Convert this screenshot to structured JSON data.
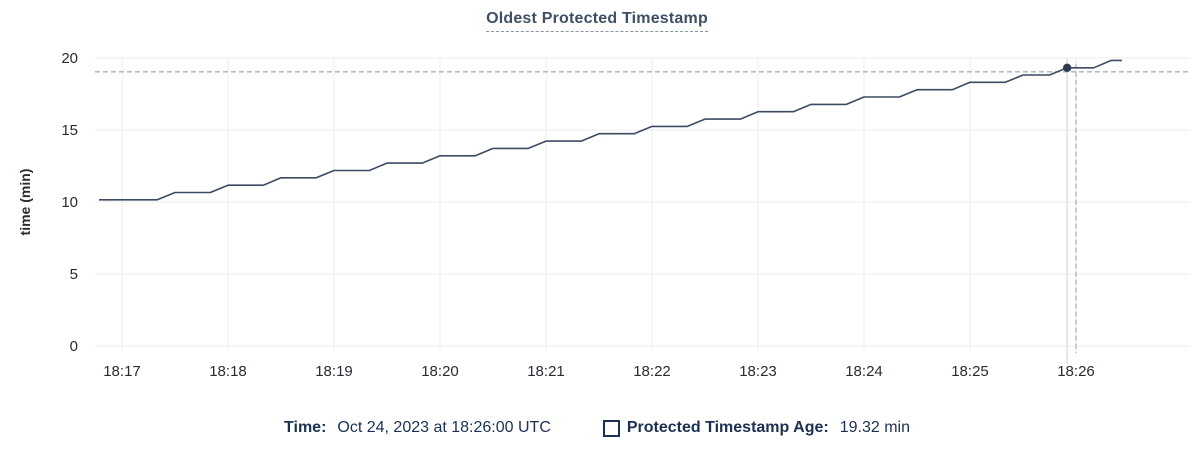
{
  "chart": {
    "title": "Oldest Protected Timestamp"
  },
  "chart_data": {
    "type": "line",
    "title": "Oldest Protected Timestamp",
    "xlabel": "",
    "ylabel": "time (min)",
    "ylim": [
      0,
      20
    ],
    "y_ticks": [
      0,
      5,
      10,
      15,
      20
    ],
    "x_ticks": [
      "18:17",
      "18:18",
      "18:19",
      "18:20",
      "18:21",
      "18:22",
      "18:23",
      "18:24",
      "18:25",
      "18:26"
    ],
    "grid": "on",
    "legend_position": "bottom-center",
    "series": [
      {
        "name": "Protected Timestamp Age",
        "unit": "min",
        "shape": "staircase rising ~1 min per min, steps of ~0.5 every 30s",
        "points_t_v": [
          [
            -13,
            10.15
          ],
          [
            20,
            10.15
          ],
          [
            30,
            10.66
          ],
          [
            50,
            10.66
          ],
          [
            60,
            11.17
          ],
          [
            80,
            11.17
          ],
          [
            90,
            11.68
          ],
          [
            110,
            11.68
          ],
          [
            120,
            12.19
          ],
          [
            140,
            12.19
          ],
          [
            150,
            12.7
          ],
          [
            170,
            12.7
          ],
          [
            180,
            13.21
          ],
          [
            200,
            13.21
          ],
          [
            210,
            13.72
          ],
          [
            230,
            13.72
          ],
          [
            240,
            14.23
          ],
          [
            260,
            14.23
          ],
          [
            270,
            14.74
          ],
          [
            290,
            14.74
          ],
          [
            300,
            15.25
          ],
          [
            320,
            15.25
          ],
          [
            330,
            15.76
          ],
          [
            350,
            15.76
          ],
          [
            360,
            16.27
          ],
          [
            380,
            16.27
          ],
          [
            390,
            16.78
          ],
          [
            410,
            16.78
          ],
          [
            420,
            17.29
          ],
          [
            440,
            17.29
          ],
          [
            450,
            17.8
          ],
          [
            470,
            17.8
          ],
          [
            480,
            18.31
          ],
          [
            500,
            18.31
          ],
          [
            510,
            18.82
          ],
          [
            525,
            18.82
          ],
          [
            535,
            19.32
          ],
          [
            550,
            19.32
          ],
          [
            560,
            19.83
          ],
          [
            566,
            19.83
          ]
        ],
        "points_t_note": "t = seconds after 18:17, v = minutes"
      }
    ],
    "hover_point": {
      "t": 535,
      "crosshair_t": 540,
      "value": 19.32,
      "unit": "min",
      "time_label": "Oct 24, 2023 at 18:26:00 UTC"
    }
  },
  "legend": {
    "time_label": "Time:",
    "time_value": "Oct 24, 2023 at 18:26:00 UTC",
    "series_label": "Protected Timestamp Age:",
    "series_value": "19.32 min"
  },
  "colors": {
    "background": "#ffffff",
    "line": "#3c4b64",
    "dot": "#2d3c55",
    "grid": "#ececec",
    "hover_guideline": "#e7e7e7",
    "crosshair_dashed": "#9fb4c2",
    "title_text": "#3e4f66",
    "title_underline": "#8296ac",
    "axis_text": "#272c33",
    "legend_text": "#1a3151"
  }
}
